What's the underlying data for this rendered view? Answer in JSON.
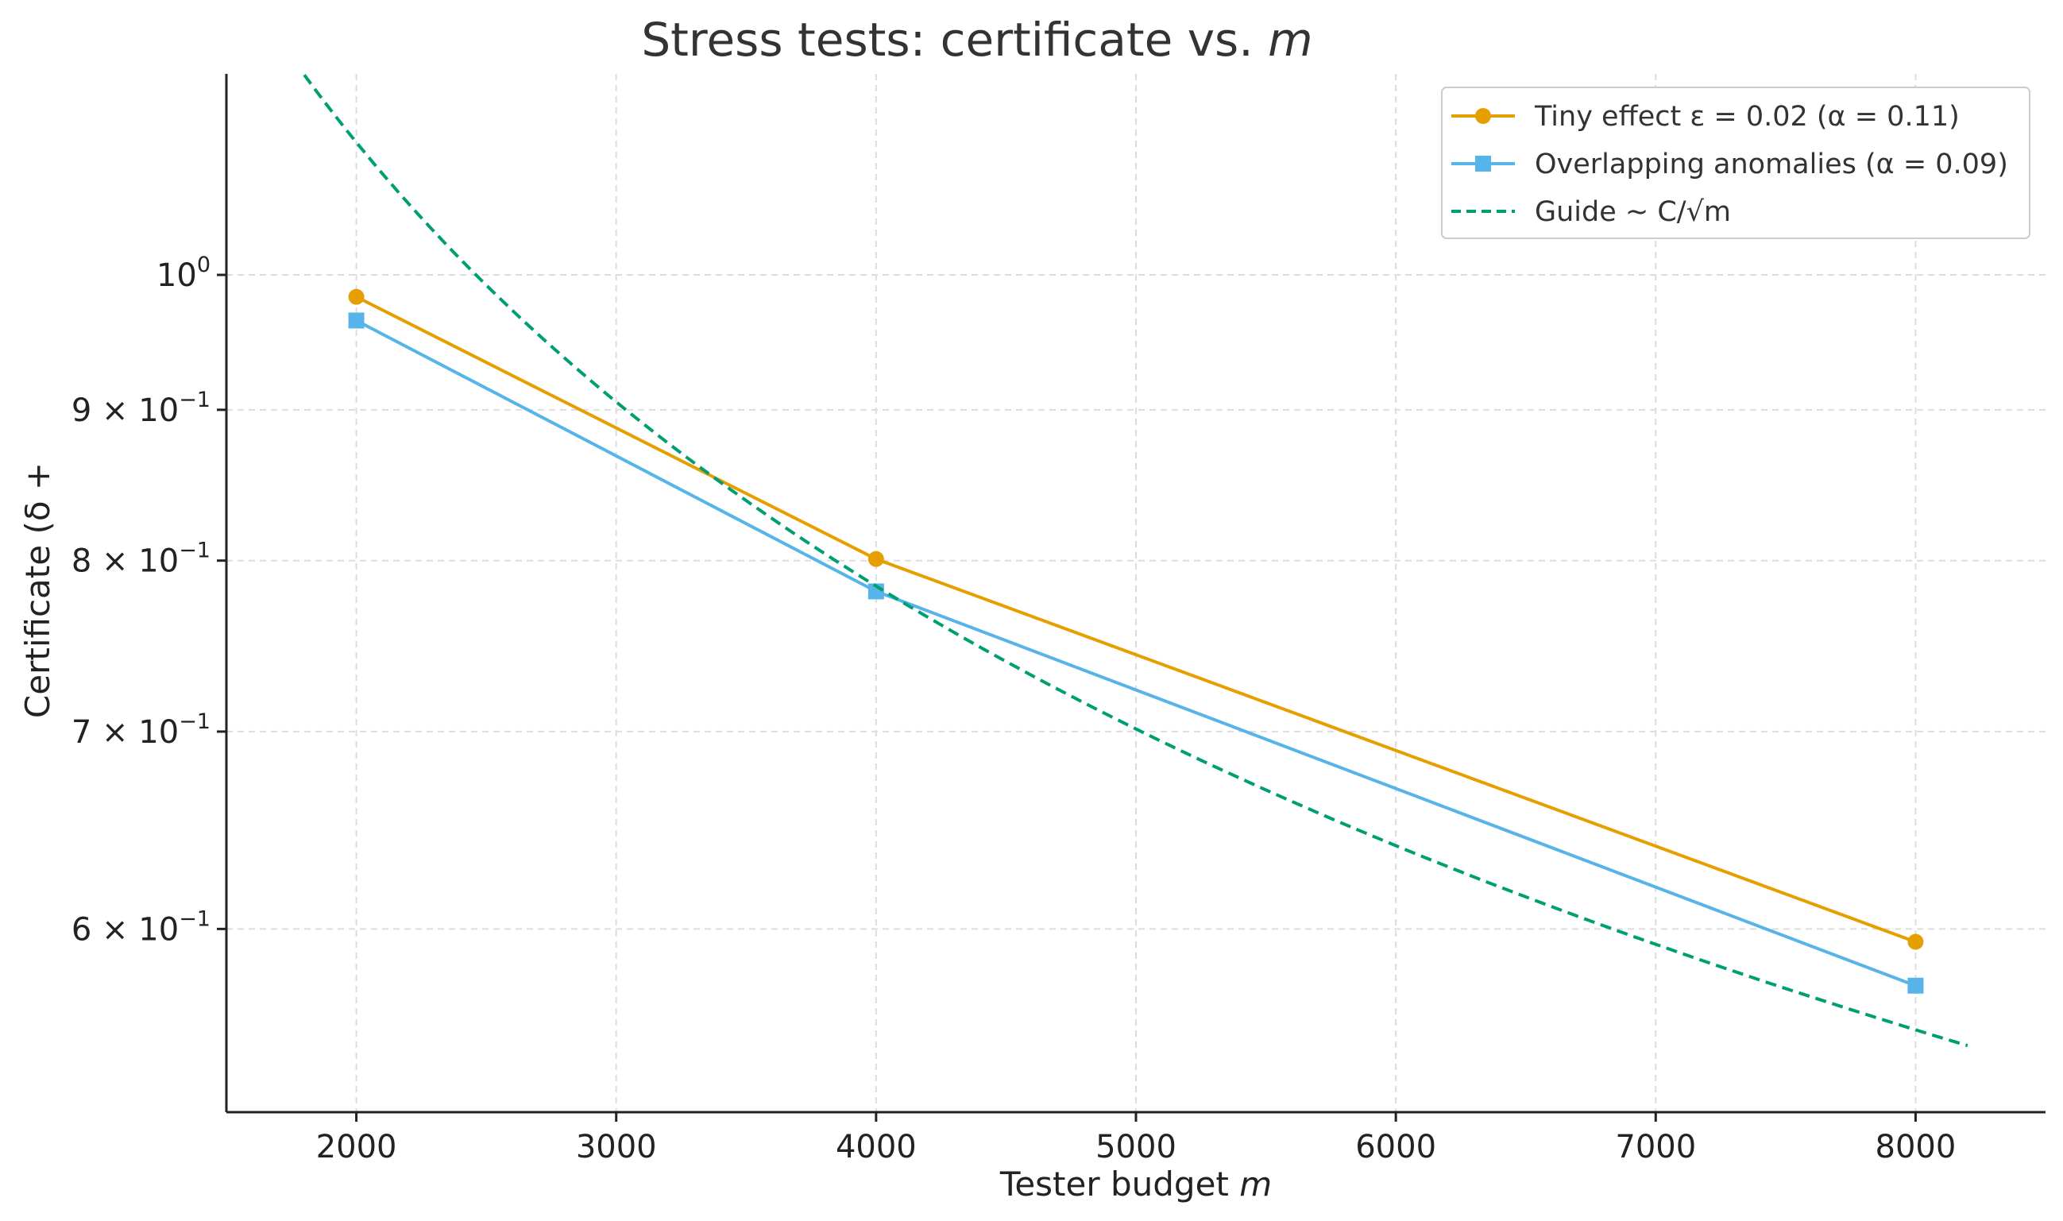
{
  "chart_data": {
    "type": "line",
    "title": "Stress tests: certificate vs. ",
    "title_var": "m",
    "xlabel": "Tester budget ",
    "xlabel_var": "m",
    "ylabel": "Certificate (δ +",
    "yscale": "log",
    "xlim": [
      1500,
      8500
    ],
    "ylim": [
      0.52,
      1.17
    ],
    "x_ticks": [
      2000,
      3000,
      4000,
      5000,
      6000,
      7000,
      8000
    ],
    "y_ticks": [
      {
        "value": 1.0,
        "mant": "",
        "base": "10",
        "exp": "0"
      },
      {
        "value": 0.9,
        "mant": "9 × ",
        "base": "10",
        "exp": "−1"
      },
      {
        "value": 0.8,
        "mant": "8 × ",
        "base": "10",
        "exp": "−1"
      },
      {
        "value": 0.7,
        "mant": "7 × ",
        "base": "10",
        "exp": "−1"
      },
      {
        "value": 0.6,
        "mant": "6 × ",
        "base": "10",
        "exp": "−1"
      }
    ],
    "grid": true,
    "legend_position": "top-right",
    "series": [
      {
        "name": "Tiny effect ε = 0.02 (α = 0.11)",
        "color": "#E69F00",
        "marker": "circle",
        "style": "solid",
        "x": [
          2000,
          4000,
          8000
        ],
        "y": [
          0.983,
          0.801,
          0.594
        ]
      },
      {
        "name": "Overlapping anomalies (α = 0.09)",
        "color": "#56B4E9",
        "marker": "square",
        "style": "solid",
        "x": [
          2000,
          4000,
          8000
        ],
        "y": [
          0.965,
          0.781,
          0.574
        ]
      },
      {
        "name": "Guide  ∼ C/√m",
        "color": "#009E73",
        "marker": "none",
        "style": "dashed",
        "formula": "C/sqrt(m)",
        "C": 49.6,
        "x_range": [
          1800,
          8200
        ]
      }
    ]
  }
}
